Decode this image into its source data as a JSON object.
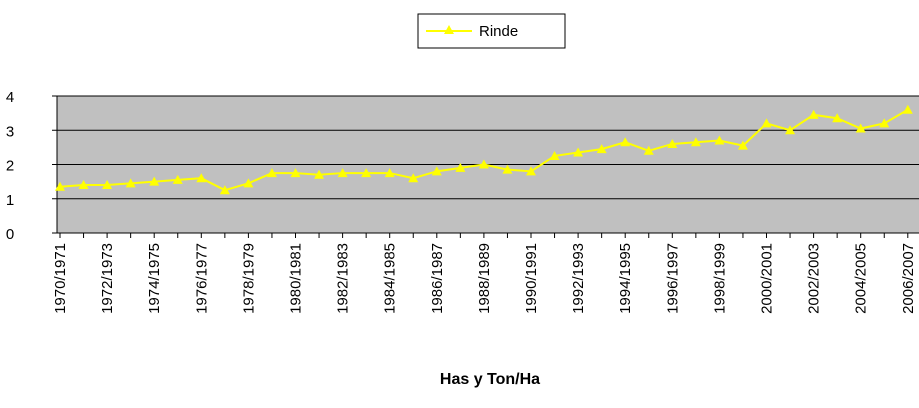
{
  "chart_data": {
    "type": "line",
    "x_label": "Has y Ton/Ha",
    "categories": [
      "1970/1971",
      null,
      "1972/1973",
      null,
      "1974/1975",
      null,
      "1976/1977",
      null,
      "1978/1979",
      null,
      "1980/1981",
      null,
      "1982/1983",
      null,
      "1984/1985",
      null,
      "1986/1987",
      null,
      "1988/1989",
      null,
      "1990/1991",
      null,
      "1992/1993",
      null,
      "1994/1995",
      null,
      "1996/1997",
      null,
      "1998/1999",
      null,
      "2000/2001",
      null,
      "2002/2003",
      null,
      "2004/2005",
      null,
      "2006/2007"
    ],
    "series": [
      {
        "name": "Rinde",
        "color": "#ffff00",
        "values": [
          1.35,
          1.4,
          1.4,
          1.45,
          1.5,
          1.55,
          1.6,
          1.25,
          1.45,
          1.75,
          1.75,
          1.7,
          1.75,
          1.75,
          1.75,
          1.6,
          1.8,
          1.9,
          2.0,
          1.85,
          1.8,
          2.25,
          2.35,
          2.45,
          2.65,
          2.4,
          2.6,
          2.65,
          2.7,
          2.55,
          3.2,
          3.0,
          3.45,
          3.35,
          3.05,
          3.2,
          3.6
        ]
      }
    ],
    "ylim": [
      0,
      4
    ],
    "yticks": [
      0,
      1,
      2,
      3,
      4
    ],
    "grid": true,
    "legend": "top"
  }
}
